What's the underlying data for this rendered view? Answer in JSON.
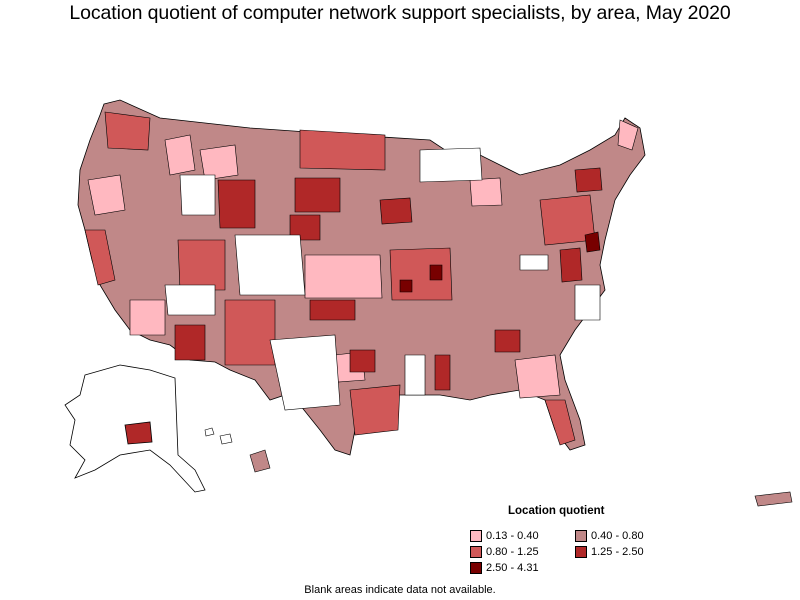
{
  "title": "Location quotient of computer network support specialists, by area, May 2020",
  "legend": {
    "title": "Location quotient",
    "items": [
      {
        "label": "0.13 - 0.40",
        "color": "#ffb8c0"
      },
      {
        "label": "0.40 - 0.80",
        "color": "#c08888"
      },
      {
        "label": "0.80 - 1.25",
        "color": "#d05858"
      },
      {
        "label": "1.25 - 2.50",
        "color": "#b02828"
      },
      {
        "label": "2.50 - 4.31",
        "color": "#780000"
      }
    ]
  },
  "footnote": "Blank areas indicate data not available.",
  "colors": {
    "border": "#000000",
    "no_data": "#ffffff",
    "background": "#ffffff"
  }
}
